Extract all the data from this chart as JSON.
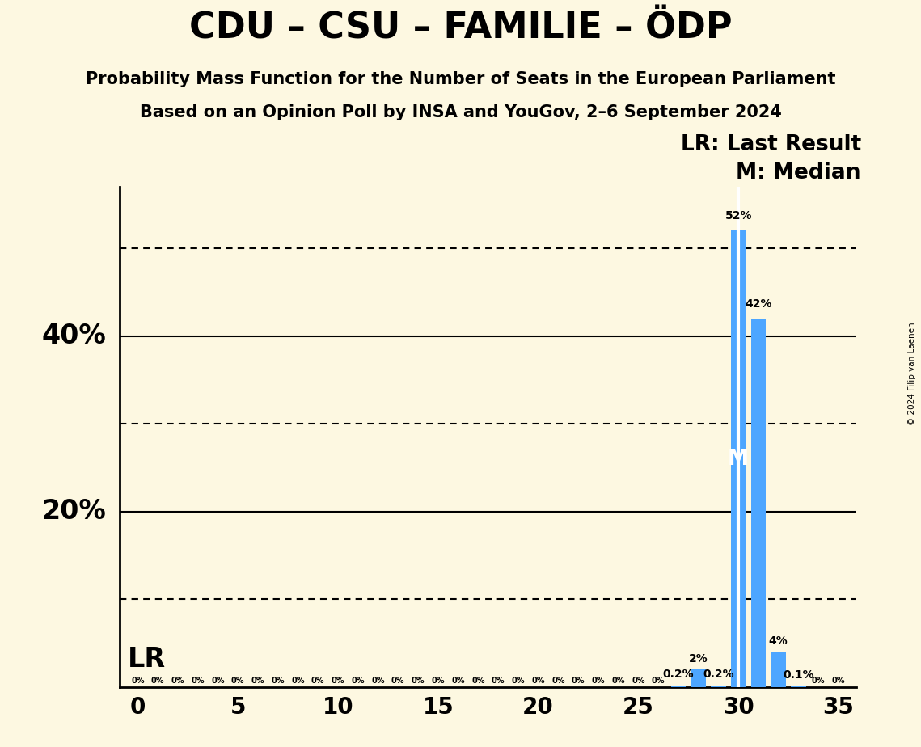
{
  "title": "CDU – CSU – FAMILIE – ÖDP",
  "subtitle1": "Probability Mass Function for the Number of Seats in the European Parliament",
  "subtitle2": "Based on an Opinion Poll by INSA and YouGov, 2–6 September 2024",
  "copyright": "© 2024 Filip van Laenen",
  "x_min": 0,
  "x_max": 35,
  "y_min": 0,
  "y_max": 57,
  "x_ticks": [
    0,
    5,
    10,
    15,
    20,
    25,
    30,
    35
  ],
  "y_ticks_solid": [
    20,
    40
  ],
  "y_ticks_dotted": [
    10,
    30,
    50
  ],
  "bar_color": "#4da6ff",
  "background_color": "#fdf8e1",
  "lr_seat": 30,
  "median_seat": 30,
  "bars": {
    "0": 0,
    "1": 0,
    "2": 0,
    "3": 0,
    "4": 0,
    "5": 0,
    "6": 0,
    "7": 0,
    "8": 0,
    "9": 0,
    "10": 0,
    "11": 0,
    "12": 0,
    "13": 0,
    "14": 0,
    "15": 0,
    "16": 0,
    "17": 0,
    "18": 0,
    "19": 0,
    "20": 0,
    "21": 0,
    "22": 0,
    "23": 0,
    "24": 0,
    "25": 0,
    "26": 0,
    "27": 0.2,
    "28": 2.0,
    "29": 0.2,
    "30": 52.0,
    "31": 42.0,
    "32": 4.0,
    "33": 0.1,
    "34": 0,
    "35": 0
  },
  "bar_labels": {
    "27": "0.2%",
    "28": "2%",
    "29": "0.2%",
    "30": "52%",
    "31": "42%",
    "32": "4%",
    "33": "0.1%"
  },
  "zero_seats": [
    0,
    1,
    2,
    3,
    4,
    5,
    6,
    7,
    8,
    9,
    10,
    11,
    12,
    13,
    14,
    15,
    16,
    17,
    18,
    19,
    20,
    21,
    22,
    23,
    24,
    25,
    26,
    34,
    35
  ],
  "title_fontsize": 32,
  "subtitle_fontsize": 15,
  "bar_label_fontsize": 10,
  "zero_label_fontsize": 7,
  "tick_fontsize": 20,
  "ytick_label_fontsize": 24,
  "legend_fontsize": 19,
  "lr_label_fontsize": 24
}
